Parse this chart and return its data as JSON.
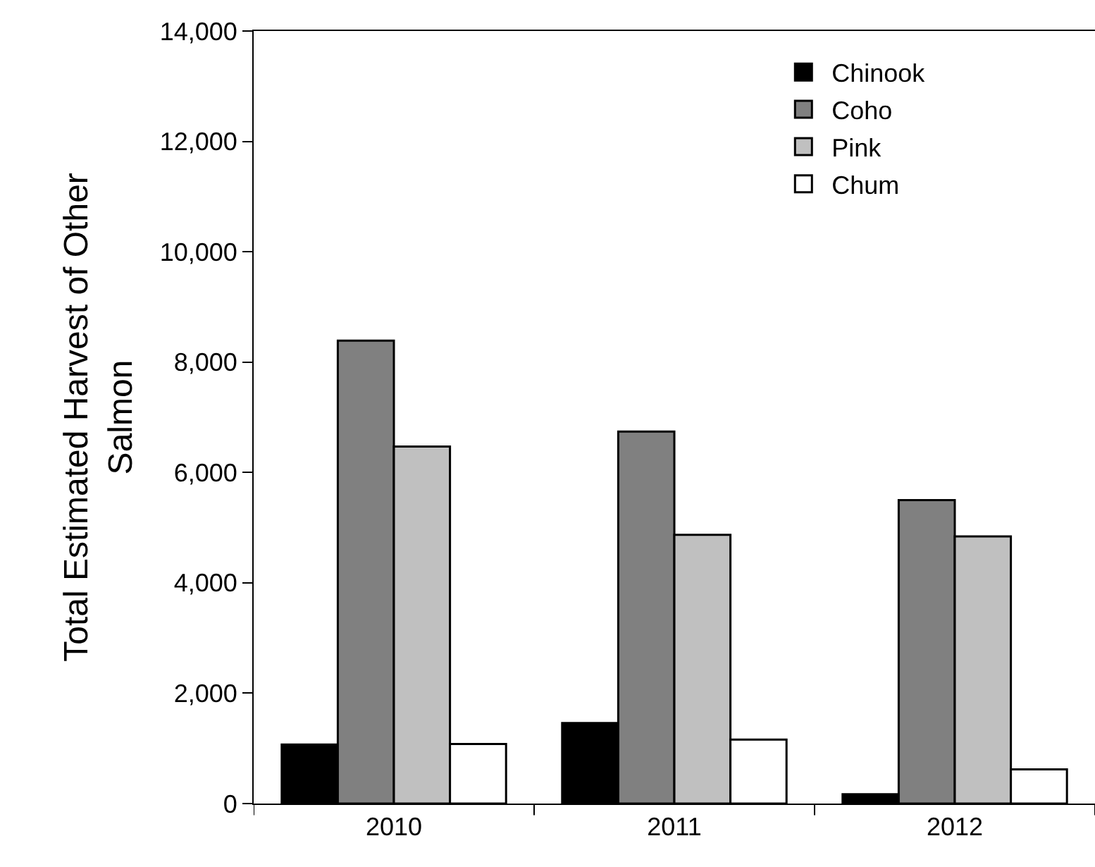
{
  "chart_data": {
    "type": "bar",
    "ylabel": "Total Estimated Harvest of Other Salmon",
    "categories": [
      "2010",
      "2011",
      "2012"
    ],
    "series": [
      {
        "name": "Chinook",
        "color": "#000000",
        "values": [
          1070,
          1460,
          170
        ]
      },
      {
        "name": "Coho",
        "color": "#808080",
        "values": [
          8390,
          6740,
          5500
        ]
      },
      {
        "name": "Pink",
        "color": "#c0c0c0",
        "values": [
          6470,
          4870,
          4840
        ]
      },
      {
        "name": "Chum",
        "color": "#ffffff",
        "values": [
          1080,
          1160,
          620
        ]
      }
    ],
    "ylim": [
      0,
      14000
    ],
    "yticks": [
      {
        "value": 0,
        "label": "0"
      },
      {
        "value": 2000,
        "label": "2,000"
      },
      {
        "value": 4000,
        "label": "4,000"
      },
      {
        "value": 6000,
        "label": "6,000"
      },
      {
        "value": 8000,
        "label": "8,000"
      },
      {
        "value": 10000,
        "label": "10,000"
      },
      {
        "value": 12000,
        "label": "12,000"
      },
      {
        "value": 14000,
        "label": "14,000"
      }
    ],
    "grid": false,
    "legend": "top right"
  }
}
